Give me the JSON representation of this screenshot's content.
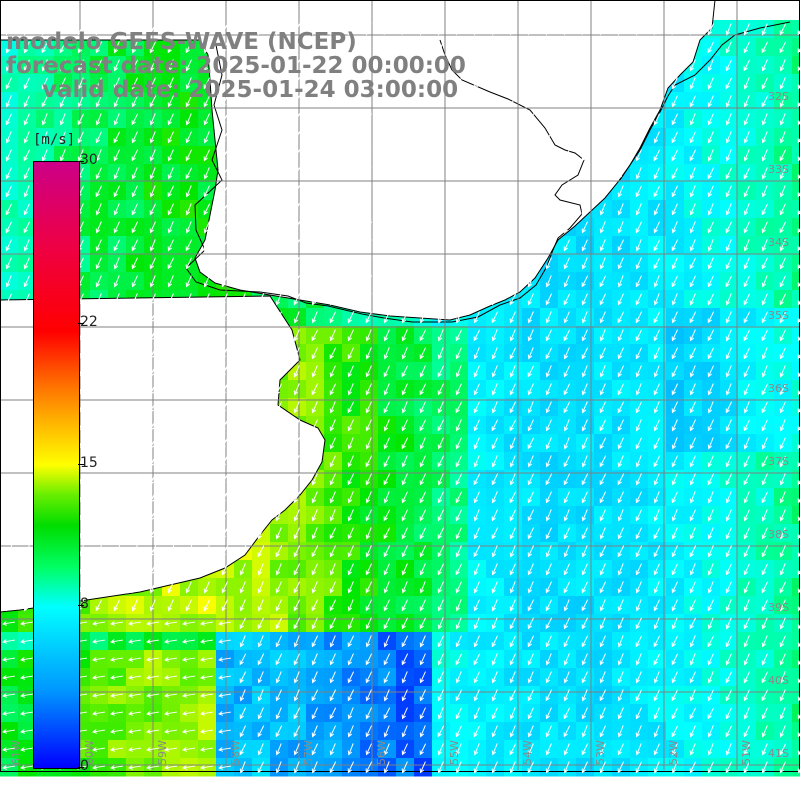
{
  "title": {
    "line1": "modelo GEFS-WAVE (NCEP)",
    "line2": "forecast date: 2025-01-22 00:00:00",
    "line3": "valid date: 2025-01-24 03:00:00"
  },
  "colorbar": {
    "unit": "[m/s]",
    "ticks": [
      "30",
      "22",
      "15",
      "8",
      "0"
    ],
    "tick_values": [
      30,
      22,
      15,
      8,
      0
    ],
    "min": 0,
    "max": 30,
    "colors": [
      "#0000ff",
      "#0099ff",
      "#00ffff",
      "#00ff66",
      "#00dd00",
      "#ffff00",
      "#ffaa00",
      "#ff0000",
      "#cc0088"
    ]
  },
  "map": {
    "latitude_labels": [
      "32S",
      "33S",
      "34S",
      "35S",
      "36S",
      "37S",
      "38S",
      "39S",
      "40S",
      "41S"
    ],
    "longitude_labels": [
      "61W",
      "60W",
      "59W",
      "58W",
      "57W",
      "56W",
      "55W",
      "54W",
      "53W",
      "52W",
      "51W"
    ],
    "land_color": "#ffffff",
    "grid_color": "#808080",
    "arrow_color": "#ffffff"
  }
}
